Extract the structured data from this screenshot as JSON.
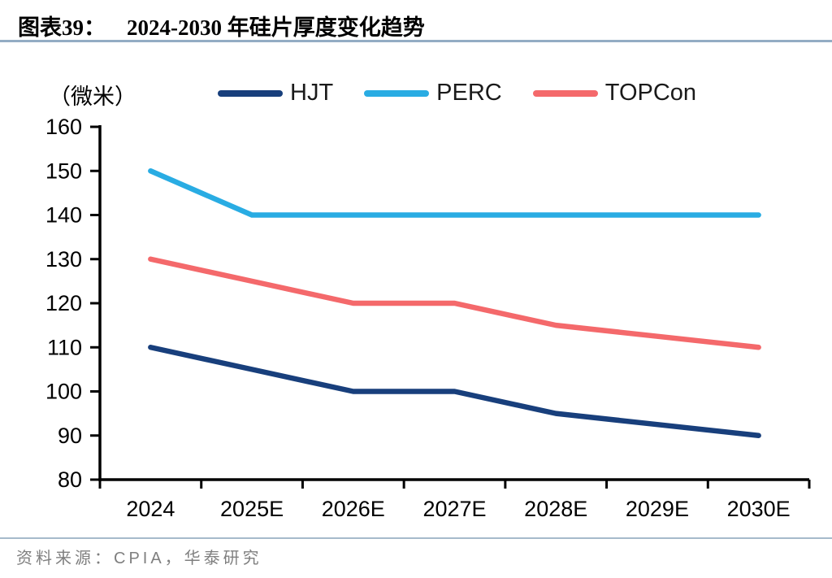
{
  "header": {
    "figure_label": "图表39：",
    "title": "2024-2030 年硅片厚度变化趋势"
  },
  "unit_label": "（微米）",
  "footer": {
    "source": "资料来源：CPIA，华泰研究"
  },
  "colors": {
    "axis": "#000000",
    "title_rule": "#93acc4",
    "bottom_rule": "#a6bacb",
    "source_text": "#7f7f7f"
  },
  "chart_data": {
    "type": "line",
    "title": "2024-2030 年硅片厚度变化趋势",
    "ylabel": "（微米）",
    "xlabel": "",
    "categories": [
      "2024",
      "2025E",
      "2026E",
      "2027E",
      "2028E",
      "2029E",
      "2030E"
    ],
    "series": [
      {
        "name": "HJT",
        "color": "#183f7c",
        "values": [
          110,
          105,
          100,
          100,
          95,
          92.5,
          90
        ]
      },
      {
        "name": "PERC",
        "color": "#29ace3",
        "values": [
          150,
          140,
          140,
          140,
          140,
          140,
          140
        ]
      },
      {
        "name": "TOPCon",
        "color": "#f4696b",
        "values": [
          130,
          125,
          120,
          120,
          115,
          112.5,
          110
        ]
      }
    ],
    "ylim": [
      80,
      160
    ],
    "ytick_step": 10,
    "grid": false,
    "legend_position": "top"
  }
}
